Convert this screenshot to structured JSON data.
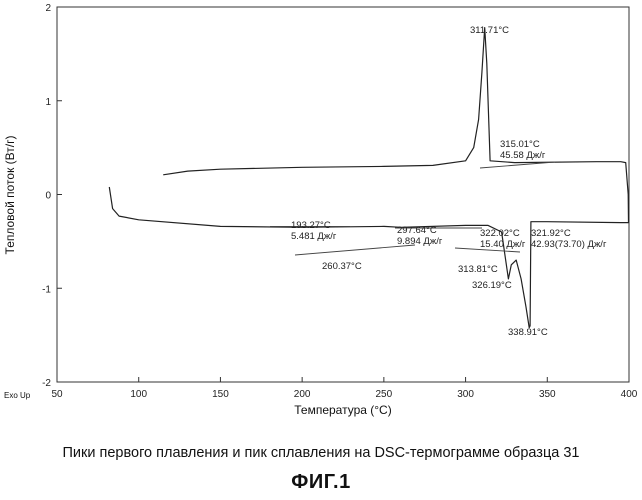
{
  "chart_data": {
    "type": "line",
    "title": "",
    "xlabel": "Температура (°C)",
    "ylabel": "Тепловой поток (Вт/г)",
    "xlim": [
      50,
      400
    ],
    "ylim": [
      -2,
      2
    ],
    "xticks": [
      50,
      100,
      150,
      200,
      250,
      300,
      350,
      400
    ],
    "yticks": [
      -2,
      -1,
      0,
      1,
      2
    ],
    "footer": "Exo Up",
    "series": [
      {
        "points": [
          [
            115,
            0.21
          ],
          [
            130,
            0.25
          ],
          [
            150,
            0.27
          ],
          [
            200,
            0.29
          ],
          [
            250,
            0.3
          ],
          [
            280,
            0.31
          ],
          [
            300,
            0.36
          ],
          [
            305,
            0.5
          ],
          [
            308,
            0.8
          ],
          [
            310,
            1.3
          ],
          [
            311.71,
            1.78
          ],
          [
            313,
            1.4
          ],
          [
            315.01,
            0.36
          ],
          [
            330,
            0.34
          ],
          [
            380,
            0.35
          ],
          [
            395,
            0.35
          ],
          [
            398,
            0.34
          ],
          [
            399.5,
            0.0
          ],
          [
            399.7,
            -0.3
          ],
          [
            395,
            -0.3
          ],
          [
            350,
            -0.29
          ],
          [
            340,
            -0.29
          ],
          [
            339.5,
            -1.4
          ],
          [
            338.91,
            -1.42
          ],
          [
            337,
            -1.2
          ],
          [
            334,
            -0.9
          ],
          [
            331,
            -0.7
          ],
          [
            328,
            -0.75
          ],
          [
            326.19,
            -0.9
          ],
          [
            322.02,
            -0.4
          ],
          [
            313.81,
            -0.33
          ],
          [
            300,
            -0.33
          ],
          [
            260.37,
            -0.35
          ],
          [
            250,
            -0.34
          ],
          [
            200,
            -0.35
          ],
          [
            150,
            -0.34
          ],
          [
            100,
            -0.27
          ],
          [
            88,
            -0.23
          ],
          [
            84,
            -0.15
          ],
          [
            82,
            0.08
          ]
        ]
      }
    ],
    "annotations": [
      {
        "lines": [
          "311.71°C"
        ]
      },
      {
        "lines": [
          "315.01°C",
          "45.58 Дж/г"
        ]
      },
      {
        "lines": [
          "193.27°C",
          "5.481 Дж/г"
        ]
      },
      {
        "lines": [
          "297.64°C",
          "9.894 Дж/г"
        ]
      },
      {
        "lines": [
          "322.02°C",
          "15.40 Дж/г"
        ]
      },
      {
        "lines": [
          "321.92°C",
          "42.93(73.70) Дж/г"
        ]
      },
      {
        "lines": [
          "260.37°C"
        ]
      },
      {
        "lines": [
          "313.81°C"
        ]
      },
      {
        "lines": [
          "326.19°C"
        ]
      },
      {
        "lines": [
          "338.91°C"
        ]
      }
    ]
  },
  "caption": "Пики первого плавления и пик сплавления на DSC-термограмме образца 31",
  "figure_label": "ФИГ.1"
}
